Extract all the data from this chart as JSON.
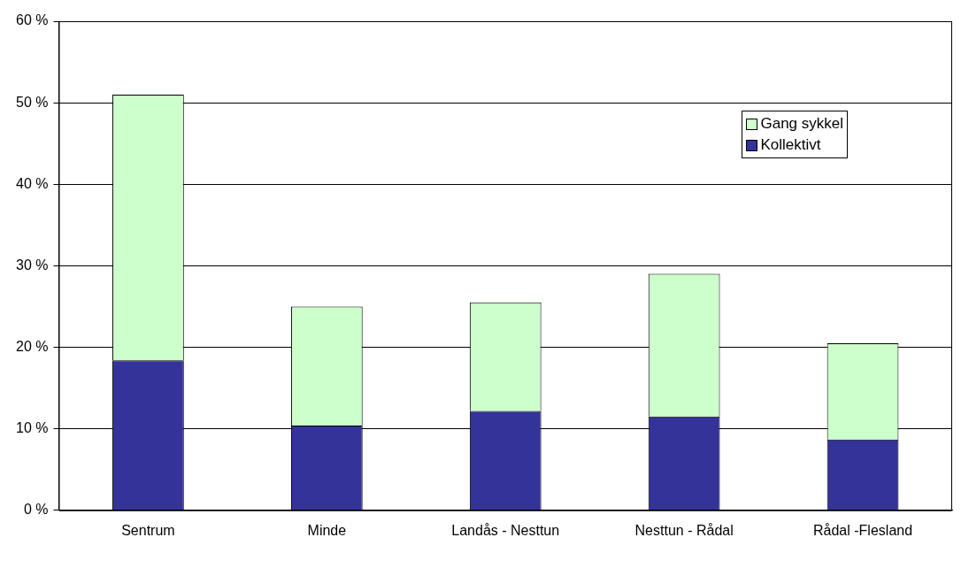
{
  "chart_data": {
    "type": "bar",
    "stacked": true,
    "categories": [
      "Sentrum",
      "Minde",
      "Landås - Nesttun",
      "Nesttun - Rådal",
      "Rådal -Flesland"
    ],
    "series": [
      {
        "name": "Kollektivt",
        "color": "#333399",
        "values": [
          18.4,
          10.4,
          12.2,
          11.5,
          8.7
        ]
      },
      {
        "name": "Gang sykkel",
        "color": "#ccffcc",
        "values": [
          32.6,
          14.6,
          13.3,
          17.5,
          11.8
        ]
      }
    ],
    "ylim": [
      0,
      60
    ],
    "yticks": [
      {
        "value": 0,
        "label": "0 %"
      },
      {
        "value": 10,
        "label": "10 %"
      },
      {
        "value": 20,
        "label": "20 %"
      },
      {
        "value": 30,
        "label": "30 %"
      },
      {
        "value": 40,
        "label": "40 %"
      },
      {
        "value": 50,
        "label": "50 %"
      },
      {
        "value": 60,
        "label": "60 %"
      }
    ],
    "grid": "y",
    "legend": "top right"
  }
}
